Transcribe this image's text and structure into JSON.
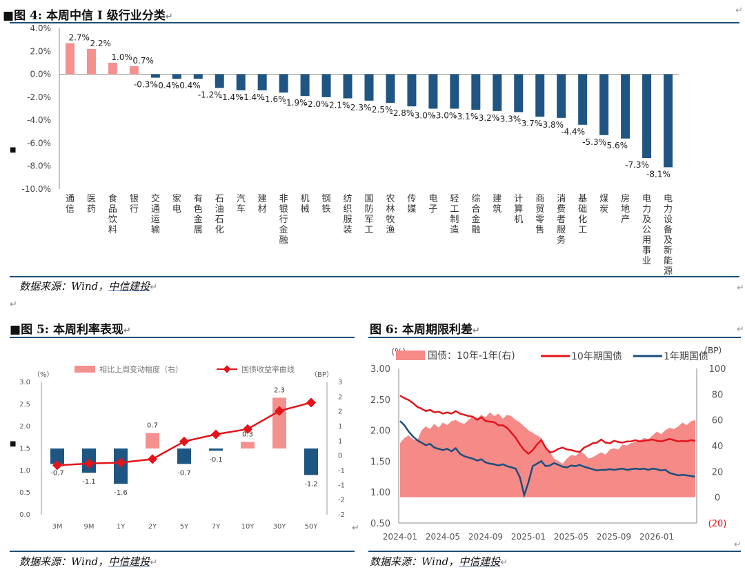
{
  "fig4": {
    "heading_mark": "■",
    "title": "图 4: 本周中信 I 级行业分类",
    "source_prefix": "数据来源：Wind，",
    "source_link": "中信建投",
    "chart_data": {
      "type": "bar",
      "categories": [
        "通信",
        "医药",
        "食品饮料",
        "银行",
        "交通运输",
        "家电",
        "有色金属",
        "石油石化",
        "汽车",
        "建材",
        "非银行金融",
        "机械",
        "钢铁",
        "纺织服装",
        "国防军工",
        "农林牧渔",
        "传媒",
        "电子",
        "轻工制造",
        "综合金融",
        "建筑",
        "计算机",
        "商贸零售",
        "消费者服务",
        "基础化工",
        "煤炭",
        "房地产",
        "电力及公用事业",
        "电力设备及新能源"
      ],
      "values": [
        2.7,
        2.2,
        1.0,
        0.7,
        -0.3,
        -0.4,
        -0.4,
        -1.2,
        -1.4,
        -1.4,
        -1.6,
        -1.9,
        -2.0,
        -2.1,
        -2.3,
        -2.5,
        -2.8,
        -3.0,
        -3.0,
        -3.1,
        -3.2,
        -3.3,
        -3.7,
        -3.8,
        -4.4,
        -5.3,
        -5.6,
        -7.3,
        -8.1
      ],
      "data_labels": [
        "2.7%",
        "2.2%",
        "1.0%",
        "0.7%",
        "-0.3%",
        "-0.4%",
        "-0.4%",
        "-1.2%",
        "-1.4%",
        "-1.4%",
        "-1.6%",
        "-1.9%",
        "-2.0%",
        "-2.1%",
        "-2.3%",
        "-2.5%",
        "-2.8%",
        "-3.0%",
        "-3.0%",
        "-3.1%",
        "-3.2%",
        "-3.3%",
        "-3.7%",
        "-3.8%",
        "-4.4%",
        "-5.3%",
        "-5.6%",
        "-7.3%",
        "-8.1%"
      ],
      "ylim": [
        -10,
        4
      ],
      "yticks": [
        4,
        2,
        0,
        -2,
        -4,
        -6,
        -8,
        -10
      ],
      "ytick_labels": [
        "4.0%",
        "2.0%",
        "0.0%",
        "-2.0%",
        "-4.0%",
        "-6.0%",
        "-8.0%",
        "-10.0%"
      ],
      "colors": {
        "positive": "#f4918f",
        "negative": "#1f5582"
      }
    }
  },
  "fig5": {
    "heading_mark": "■",
    "title": "图 5: 本周利率表现",
    "source_prefix": "数据来源：Wind，",
    "source_link": "中信建投",
    "chart_data": {
      "type": "bar+line",
      "categories": [
        "3M",
        "9M",
        "1Y",
        "2Y",
        "5Y",
        "7Y",
        "10Y",
        "30Y",
        "50Y"
      ],
      "series": [
        {
          "name": "相比上周变动幅度（右）",
          "type": "bar",
          "axis": "right",
          "values": [
            -0.7,
            -1.1,
            -1.6,
            0.7,
            -0.7,
            -0.1,
            0.3,
            2.3,
            -1.2
          ],
          "labels": [
            "-0.7",
            "-1.1",
            "-1.6",
            "0.7",
            "-0.7",
            "-0.1",
            "0.3",
            "2.3",
            "-1.2"
          ]
        },
        {
          "name": "国债收益率曲线",
          "type": "line",
          "axis": "left",
          "values": [
            1.12,
            1.16,
            1.18,
            1.26,
            1.66,
            1.82,
            1.94,
            2.35,
            2.54
          ]
        }
      ],
      "left_unit": "（%）",
      "right_unit": "（BP）",
      "ylim_left": [
        0,
        3
      ],
      "yticks_left": [
        "3.0",
        "2.5",
        "2.0",
        "1.5",
        "1.0",
        "0.5",
        "0.0"
      ],
      "ylim_right": [
        -3,
        3
      ],
      "yticks_right": [
        "3",
        "2",
        "2",
        "1",
        "1",
        "0",
        "-1",
        "-1",
        "-2",
        "-2"
      ],
      "colors": {
        "bar_positive": "#f4918f",
        "bar_negative": "#1f5582",
        "line": "#e4141b"
      }
    }
  },
  "fig6": {
    "heading_mark": "",
    "title": "图 6: 本周期限利差",
    "source_prefix": "数据来源：Wind，",
    "source_link": "中信建投",
    "chart_data": {
      "type": "line+area",
      "x_labels": [
        "2024-01",
        "2024-05",
        "2024-09",
        "2025-01",
        "2025-05",
        "2025-09",
        "2026-01"
      ],
      "left_unit": "（%）",
      "right_unit": "（BP）",
      "ylim_left": [
        0.5,
        3.0
      ],
      "yticks_left": [
        "3.00",
        "2.50",
        "2.00",
        "1.50",
        "1.00",
        "0.50"
      ],
      "ylim_right": [
        -20,
        100
      ],
      "yticks_right": [
        "100",
        "80",
        "60",
        "40",
        "20",
        "0",
        "(20)"
      ],
      "series": [
        {
          "name": "国债：10年-1年(右)",
          "type": "area",
          "axis": "right",
          "values": [
            42,
            46,
            48,
            45,
            44,
            52,
            55,
            53,
            57,
            54,
            58,
            56,
            59,
            60,
            58,
            57,
            60,
            63,
            61,
            64,
            62,
            66,
            63,
            65,
            61,
            64,
            63,
            60,
            58,
            55,
            52,
            50,
            48,
            46,
            40,
            35,
            30,
            28,
            26,
            30,
            33,
            32,
            35,
            34,
            30,
            31,
            33,
            35,
            33,
            37,
            38,
            37,
            41,
            40,
            42,
            43,
            44,
            46,
            45,
            48,
            51,
            49,
            52,
            54,
            53,
            55,
            58,
            56,
            59,
            60
          ]
        },
        {
          "name": "10年期国债",
          "type": "line",
          "axis": "left",
          "values": [
            2.56,
            2.52,
            2.49,
            2.44,
            2.38,
            2.35,
            2.31,
            2.33,
            2.29,
            2.3,
            2.27,
            2.29,
            2.27,
            2.31,
            2.27,
            2.25,
            2.23,
            2.22,
            2.17,
            2.21,
            2.15,
            2.14,
            2.13,
            2.08,
            2.08,
            2.04,
            1.96,
            1.88,
            1.77,
            1.68,
            1.62,
            1.68,
            1.77,
            1.84,
            1.72,
            1.64,
            1.66,
            1.7,
            1.72,
            1.69,
            1.68,
            1.66,
            1.65,
            1.72,
            1.75,
            1.79,
            1.8,
            1.85,
            1.8,
            1.79,
            1.83,
            1.81,
            1.8,
            1.82,
            1.82,
            1.84,
            1.82,
            1.83,
            1.84,
            1.85,
            1.83,
            1.82,
            1.84,
            1.86,
            1.84,
            1.82,
            1.83,
            1.82,
            1.84,
            1.83
          ]
        },
        {
          "name": "1年期国债",
          "type": "line",
          "axis": "left",
          "values": [
            2.15,
            2.08,
            1.98,
            1.9,
            1.84,
            1.8,
            1.76,
            1.78,
            1.72,
            1.7,
            1.68,
            1.7,
            1.66,
            1.71,
            1.62,
            1.58,
            1.56,
            1.54,
            1.51,
            1.53,
            1.48,
            1.46,
            1.45,
            1.43,
            1.45,
            1.42,
            1.4,
            1.38,
            1.24,
            0.95,
            1.16,
            1.42,
            1.46,
            1.5,
            1.42,
            1.43,
            1.47,
            1.44,
            1.41,
            1.4,
            1.43,
            1.42,
            1.44,
            1.41,
            1.39,
            1.37,
            1.35,
            1.36,
            1.36,
            1.37,
            1.36,
            1.37,
            1.38,
            1.36,
            1.37,
            1.38,
            1.37,
            1.38,
            1.36,
            1.38,
            1.37,
            1.35,
            1.36,
            1.31,
            1.29,
            1.27,
            1.28,
            1.27,
            1.26,
            1.25
          ]
        }
      ],
      "colors": {
        "area": "#f58a87",
        "line10": "#e4141b",
        "line1": "#1a4e7c",
        "right_axis": "#e4141b"
      }
    }
  }
}
